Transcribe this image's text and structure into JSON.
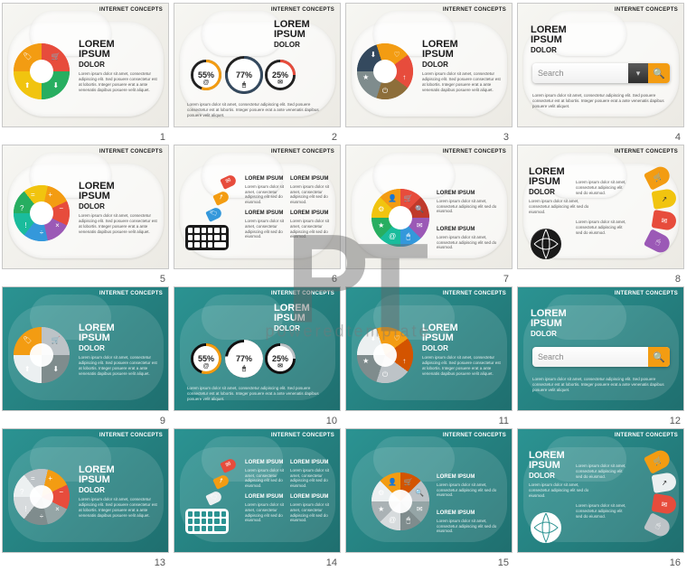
{
  "watermark": {
    "brand": "poweredtemplate"
  },
  "header_label": "INTERNET CONCEPTS",
  "title": {
    "line1": "LOREM",
    "line2": "IPSUM",
    "sub": "DOLOR"
  },
  "lorem_short": "Lorem ipsum dolor sit amet, consectetur adipiscing elit. Sed posuere consectetur est at lobortis. Integer posuere erat a ante venenatis dapibus posuere velit aliquet.",
  "lorem_col_title": "LOREM IPSUM",
  "lorem_col": "Lorem ipsum dolor sit amet, consectetur adipiscing elit sed do eiusmod.",
  "search_placeholder": "Search",
  "palette": {
    "orange": "#f39c12",
    "red": "#e74c3c",
    "green": "#27ae60",
    "yellow": "#f1c40f",
    "blue": "#3498db",
    "teal": "#1abc9c",
    "purple": "#9b59b6",
    "navy": "#34495e",
    "darkorange": "#d35400",
    "crimson": "#c0392b",
    "grey": "#7f8c8d",
    "brown": "#8d6e3a",
    "white": "#ffffff",
    "black": "#1a1a1a"
  },
  "slides": [
    {
      "n": 1,
      "bg": "light",
      "donut": {
        "segments": [
          {
            "color": "#f39c12",
            "icon": "🛒"
          },
          {
            "color": "#e74c3c",
            "icon": "⬇"
          },
          {
            "color": "#27ae60",
            "icon": "⬆"
          },
          {
            "color": "#f1c40f",
            "icon": "🏷"
          }
        ],
        "pos": "left"
      }
    },
    {
      "n": 2,
      "bg": "light",
      "rings": [
        {
          "pct": "55%",
          "color": "#f39c12",
          "sub": "@"
        },
        {
          "pct": "77%",
          "color": "#34495e",
          "sub": "🖱"
        },
        {
          "pct": "25%",
          "color": "#e74c3c",
          "sub": "✉"
        }
      ]
    },
    {
      "n": 3,
      "bg": "light",
      "donut": {
        "segments": [
          {
            "color": "#34495e",
            "icon": "♡"
          },
          {
            "color": "#f39c12",
            "icon": "↑"
          },
          {
            "color": "#e74c3c",
            "icon": "⏻"
          },
          {
            "color": "#8d6e3a",
            "icon": "★"
          },
          {
            "color": "#7f8c8d",
            "icon": "⬇"
          }
        ],
        "pos": "left"
      }
    },
    {
      "n": 4,
      "bg": "light",
      "search": true,
      "btn_color": "#f39c12"
    },
    {
      "n": 5,
      "bg": "light",
      "donut": {
        "segments": [
          {
            "color": "#27ae60",
            "icon": "+"
          },
          {
            "color": "#f1c40f",
            "icon": "−"
          },
          {
            "color": "#f39c12",
            "icon": "×"
          },
          {
            "color": "#e74c3c",
            "icon": "÷"
          },
          {
            "color": "#9b59b6",
            "icon": "!"
          },
          {
            "color": "#3498db",
            "icon": "?"
          },
          {
            "color": "#1abc9c",
            "icon": "="
          }
        ],
        "pos": "left"
      }
    },
    {
      "n": 6,
      "bg": "light",
      "keyboard": true,
      "kb_color": "#1a1a1a",
      "tags": [
        {
          "color": "#3498db",
          "icon": "🏷"
        },
        {
          "color": "#f39c12",
          "icon": "↗"
        },
        {
          "color": "#e74c3c",
          "icon": "✉"
        }
      ]
    },
    {
      "n": 7,
      "bg": "light",
      "donut": {
        "segments": [
          {
            "color": "#f1c40f",
            "icon": "🛒"
          },
          {
            "color": "#f39c12",
            "icon": "🔍"
          },
          {
            "color": "#e74c3c",
            "icon": "✉"
          },
          {
            "color": "#c0392b",
            "icon": "🖱"
          },
          {
            "color": "#9b59b6",
            "icon": "@"
          },
          {
            "color": "#3498db",
            "icon": "★"
          },
          {
            "color": "#1abc9c",
            "icon": "⚙"
          },
          {
            "color": "#27ae60",
            "icon": "👤"
          }
        ],
        "pos": "center"
      }
    },
    {
      "n": 8,
      "bg": "light",
      "globe": "#1a1a1a",
      "fan": [
        {
          "color": "#f39c12",
          "icon": "🛒"
        },
        {
          "color": "#f1c40f",
          "icon": "↗"
        },
        {
          "color": "#e74c3c",
          "icon": "✉"
        },
        {
          "color": "#9b59b6",
          "icon": "🖱"
        }
      ]
    },
    {
      "n": 9,
      "bg": "dark",
      "donut": {
        "segments": [
          {
            "color": "#f39c12",
            "icon": "🛒"
          },
          {
            "color": "#bdc3c7",
            "icon": "⬇"
          },
          {
            "color": "#7f8c8d",
            "icon": "⬆"
          },
          {
            "color": "#ecf0f1",
            "icon": "🏷"
          }
        ],
        "pos": "left"
      }
    },
    {
      "n": 10,
      "bg": "dark",
      "rings": [
        {
          "pct": "55%",
          "color": "#f39c12",
          "sub": "@"
        },
        {
          "pct": "77%",
          "color": "#ffffff",
          "sub": "🖱"
        },
        {
          "pct": "25%",
          "color": "#bdc3c7",
          "sub": "✉"
        }
      ]
    },
    {
      "n": 11,
      "bg": "dark",
      "donut": {
        "segments": [
          {
            "color": "#ecf0f1",
            "icon": "♡"
          },
          {
            "color": "#f39c12",
            "icon": "↑"
          },
          {
            "color": "#d35400",
            "icon": "⏻"
          },
          {
            "color": "#bdc3c7",
            "icon": "★"
          },
          {
            "color": "#7f8c8d",
            "icon": "⬇"
          }
        ],
        "pos": "left"
      }
    },
    {
      "n": 12,
      "bg": "dark",
      "search": true,
      "btn_color": "#f39c12"
    },
    {
      "n": 13,
      "bg": "dark",
      "donut": {
        "segments": [
          {
            "color": "#ecf0f1",
            "icon": "+"
          },
          {
            "color": "#bdc3c7",
            "icon": "−"
          },
          {
            "color": "#f39c12",
            "icon": "×"
          },
          {
            "color": "#e74c3c",
            "icon": "÷"
          },
          {
            "color": "#95a5a6",
            "icon": "!"
          },
          {
            "color": "#7f8c8d",
            "icon": "?"
          },
          {
            "color": "#d7dbdd",
            "icon": "="
          }
        ],
        "pos": "left"
      }
    },
    {
      "n": 14,
      "bg": "dark",
      "keyboard": true,
      "kb_color": "#ffffff",
      "tags": [
        {
          "color": "#ecf0f1",
          "icon": "🏷"
        },
        {
          "color": "#f39c12",
          "icon": "↗"
        },
        {
          "color": "#e74c3c",
          "icon": "✉"
        }
      ]
    },
    {
      "n": 15,
      "bg": "dark",
      "donut": {
        "segments": [
          {
            "color": "#ecf0f1",
            "icon": "🛒"
          },
          {
            "color": "#f39c12",
            "icon": "🔍"
          },
          {
            "color": "#d35400",
            "icon": "✉"
          },
          {
            "color": "#bdc3c7",
            "icon": "🖱"
          },
          {
            "color": "#95a5a6",
            "icon": "@"
          },
          {
            "color": "#7f8c8d",
            "icon": "★"
          },
          {
            "color": "#d7dbdd",
            "icon": "⚙"
          },
          {
            "color": "#aab2b5",
            "icon": "👤"
          }
        ],
        "pos": "center"
      }
    },
    {
      "n": 16,
      "bg": "dark",
      "globe": "#ffffff",
      "fan": [
        {
          "color": "#f39c12",
          "icon": "🛒"
        },
        {
          "color": "#ecf0f1",
          "icon": "↗"
        },
        {
          "color": "#e74c3c",
          "icon": "✉"
        },
        {
          "color": "#bdc3c7",
          "icon": "🖱"
        }
      ]
    }
  ]
}
